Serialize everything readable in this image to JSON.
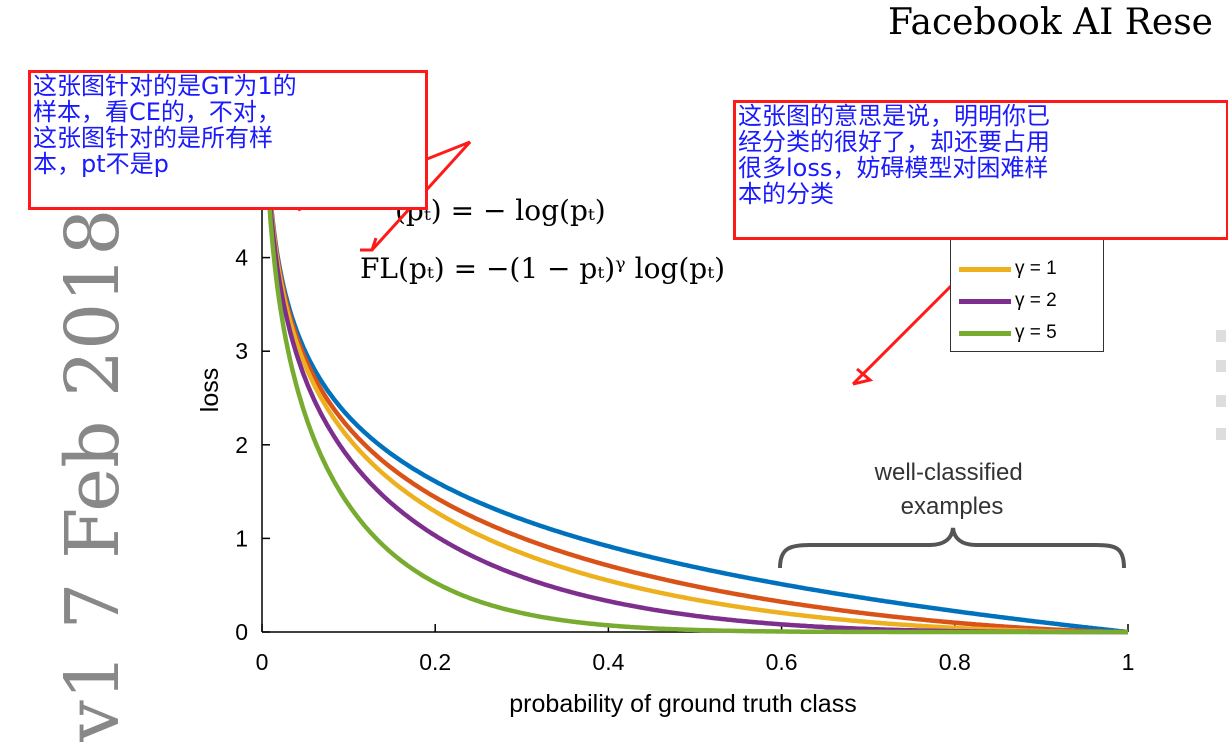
{
  "header": {
    "text": "Facebook AI Rese"
  },
  "sidebar_date": {
    "text": "v1 7 Feb 2018"
  },
  "formulas": {
    "ce": "CE(pₜ) = − log(pₜ)",
    "ce_visible": "(pₜ) = − log(pₜ)",
    "fl": "FL(pₜ) = −(1 − pₜ)ᵞ log(pₜ)"
  },
  "annotations": {
    "left_note": "这张图针对的是GT为1的\n样本，看CE的，不对，\n这张图针对的是所有样\n本，pt不是p",
    "right_note": "这张图的意思是说，明明你已\n经分类的很好了，却还要占用\n很多loss，妨碍模型对困难样\n本的分类"
  },
  "brace_label": "well-classified\nexamples",
  "colors": {
    "gamma0": "#0072BD",
    "gamma05": "#D95319",
    "gamma1": "#EDB120",
    "gamma2": "#7E2F8E",
    "gamma5": "#77AC30",
    "annotation_border": "#ff1a1a",
    "annotation_text": "#1a1aff"
  },
  "chart_data": {
    "type": "line",
    "title": "",
    "xlabel": "probability of ground truth class",
    "ylabel": "loss",
    "xlim": [
      0,
      1
    ],
    "ylim": [
      0,
      5
    ],
    "xticks": [
      "0",
      "0.2",
      "0.4",
      "0.6",
      "0.8",
      "1"
    ],
    "yticks": [
      "0",
      "1",
      "2",
      "3",
      "4"
    ],
    "grid": false,
    "legend_placement": "top-right",
    "function": "loss = -(1 - p)^gamma * ln(p)",
    "series": [
      {
        "name": "",
        "gamma": 0,
        "color": "#0072BD"
      },
      {
        "name": "",
        "gamma": 0.5,
        "color": "#D95319"
      },
      {
        "name": "γ = 1",
        "gamma": 1,
        "color": "#EDB120"
      },
      {
        "name": "γ = 2",
        "gamma": 2,
        "color": "#7E2F8E"
      },
      {
        "name": "γ = 5",
        "gamma": 5,
        "color": "#77AC30"
      }
    ]
  }
}
